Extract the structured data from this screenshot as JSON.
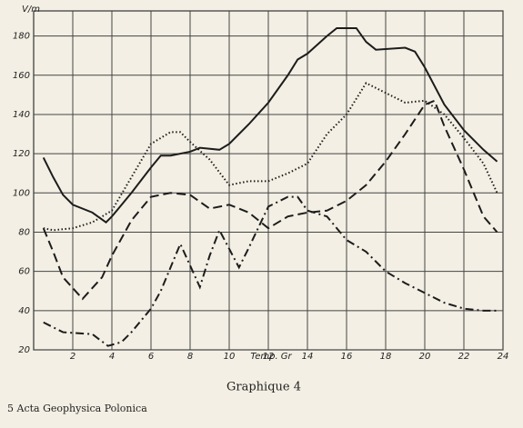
{
  "chart_data": {
    "type": "line",
    "y_unit_label": "V/m",
    "x_label": "Temp. Gr",
    "caption": "Graphique 4",
    "footer": "5 Acta Geophysica Polonica",
    "xlim": [
      0,
      24
    ],
    "xticks": [
      2,
      4,
      6,
      8,
      10,
      12,
      14,
      16,
      18,
      20,
      22,
      24
    ],
    "ylim": [
      20,
      190
    ],
    "yticks": [
      20,
      40,
      60,
      80,
      100,
      120,
      140,
      160,
      180
    ],
    "grid": true,
    "series": [
      {
        "color": "#1c1c1c",
        "linestyle": "solid",
        "x": [
          0.5,
          1,
          1.5,
          2,
          3,
          3.7,
          4,
          5,
          6,
          6.5,
          7,
          8,
          8.5,
          9.5,
          10,
          11,
          12,
          13,
          13.5,
          14,
          15,
          15.5,
          16.5,
          17,
          17.5,
          19,
          19.5,
          20,
          21,
          22,
          23,
          23.7
        ],
        "values": [
          118,
          108,
          99,
          94,
          90,
          85,
          88,
          100,
          113,
          119,
          119,
          121,
          123,
          122,
          125,
          135,
          146,
          160,
          168,
          171,
          180,
          184,
          184,
          177,
          173,
          174,
          172,
          164,
          145,
          132,
          122,
          116
        ]
      },
      {
        "color": "#1c1c1c",
        "linestyle": "dotted",
        "x": [
          0.5,
          1,
          2,
          3,
          4,
          5,
          6,
          7,
          7.5,
          8,
          9,
          10,
          11,
          12,
          13,
          14,
          15,
          16,
          17,
          18,
          19,
          20,
          21,
          22,
          23,
          23.7
        ],
        "values": [
          82,
          81,
          82,
          85,
          91,
          108,
          125,
          131,
          131,
          126,
          117,
          104,
          106,
          106,
          110,
          115,
          130,
          140,
          156,
          151,
          146,
          147,
          140,
          128,
          115,
          100
        ]
      },
      {
        "color": "#1c1c1c",
        "linestyle": "dashed",
        "x": [
          0.5,
          1,
          1.5,
          2.5,
          3.5,
          4,
          5,
          6,
          7,
          8,
          9,
          10,
          11,
          12,
          13,
          14,
          15,
          16,
          17,
          18,
          19,
          20,
          20.5,
          21,
          22,
          23,
          23.7
        ],
        "values": [
          82,
          70,
          57,
          46,
          57,
          68,
          86,
          98,
          100,
          99,
          92,
          94,
          90,
          82,
          88,
          90,
          91,
          96,
          104,
          116,
          130,
          145,
          147,
          134,
          112,
          88,
          80
        ]
      },
      {
        "color": "#1c1c1c",
        "linestyle": "dashdot",
        "x": [
          0.5,
          1.5,
          3,
          3.8,
          4.5,
          5,
          6,
          6.5,
          7.5,
          8,
          8.5,
          9,
          9.5,
          10.5,
          11,
          12,
          13,
          13.5,
          14,
          15,
          16,
          17,
          18,
          19,
          20,
          21,
          22,
          23,
          23.7
        ],
        "values": [
          34,
          29,
          28,
          22,
          24,
          29,
          41,
          50,
          74,
          63,
          52,
          68,
          81,
          62,
          72,
          93,
          98,
          98,
          91,
          88,
          76,
          70,
          60,
          54,
          49,
          44,
          41,
          40,
          40
        ]
      }
    ]
  }
}
